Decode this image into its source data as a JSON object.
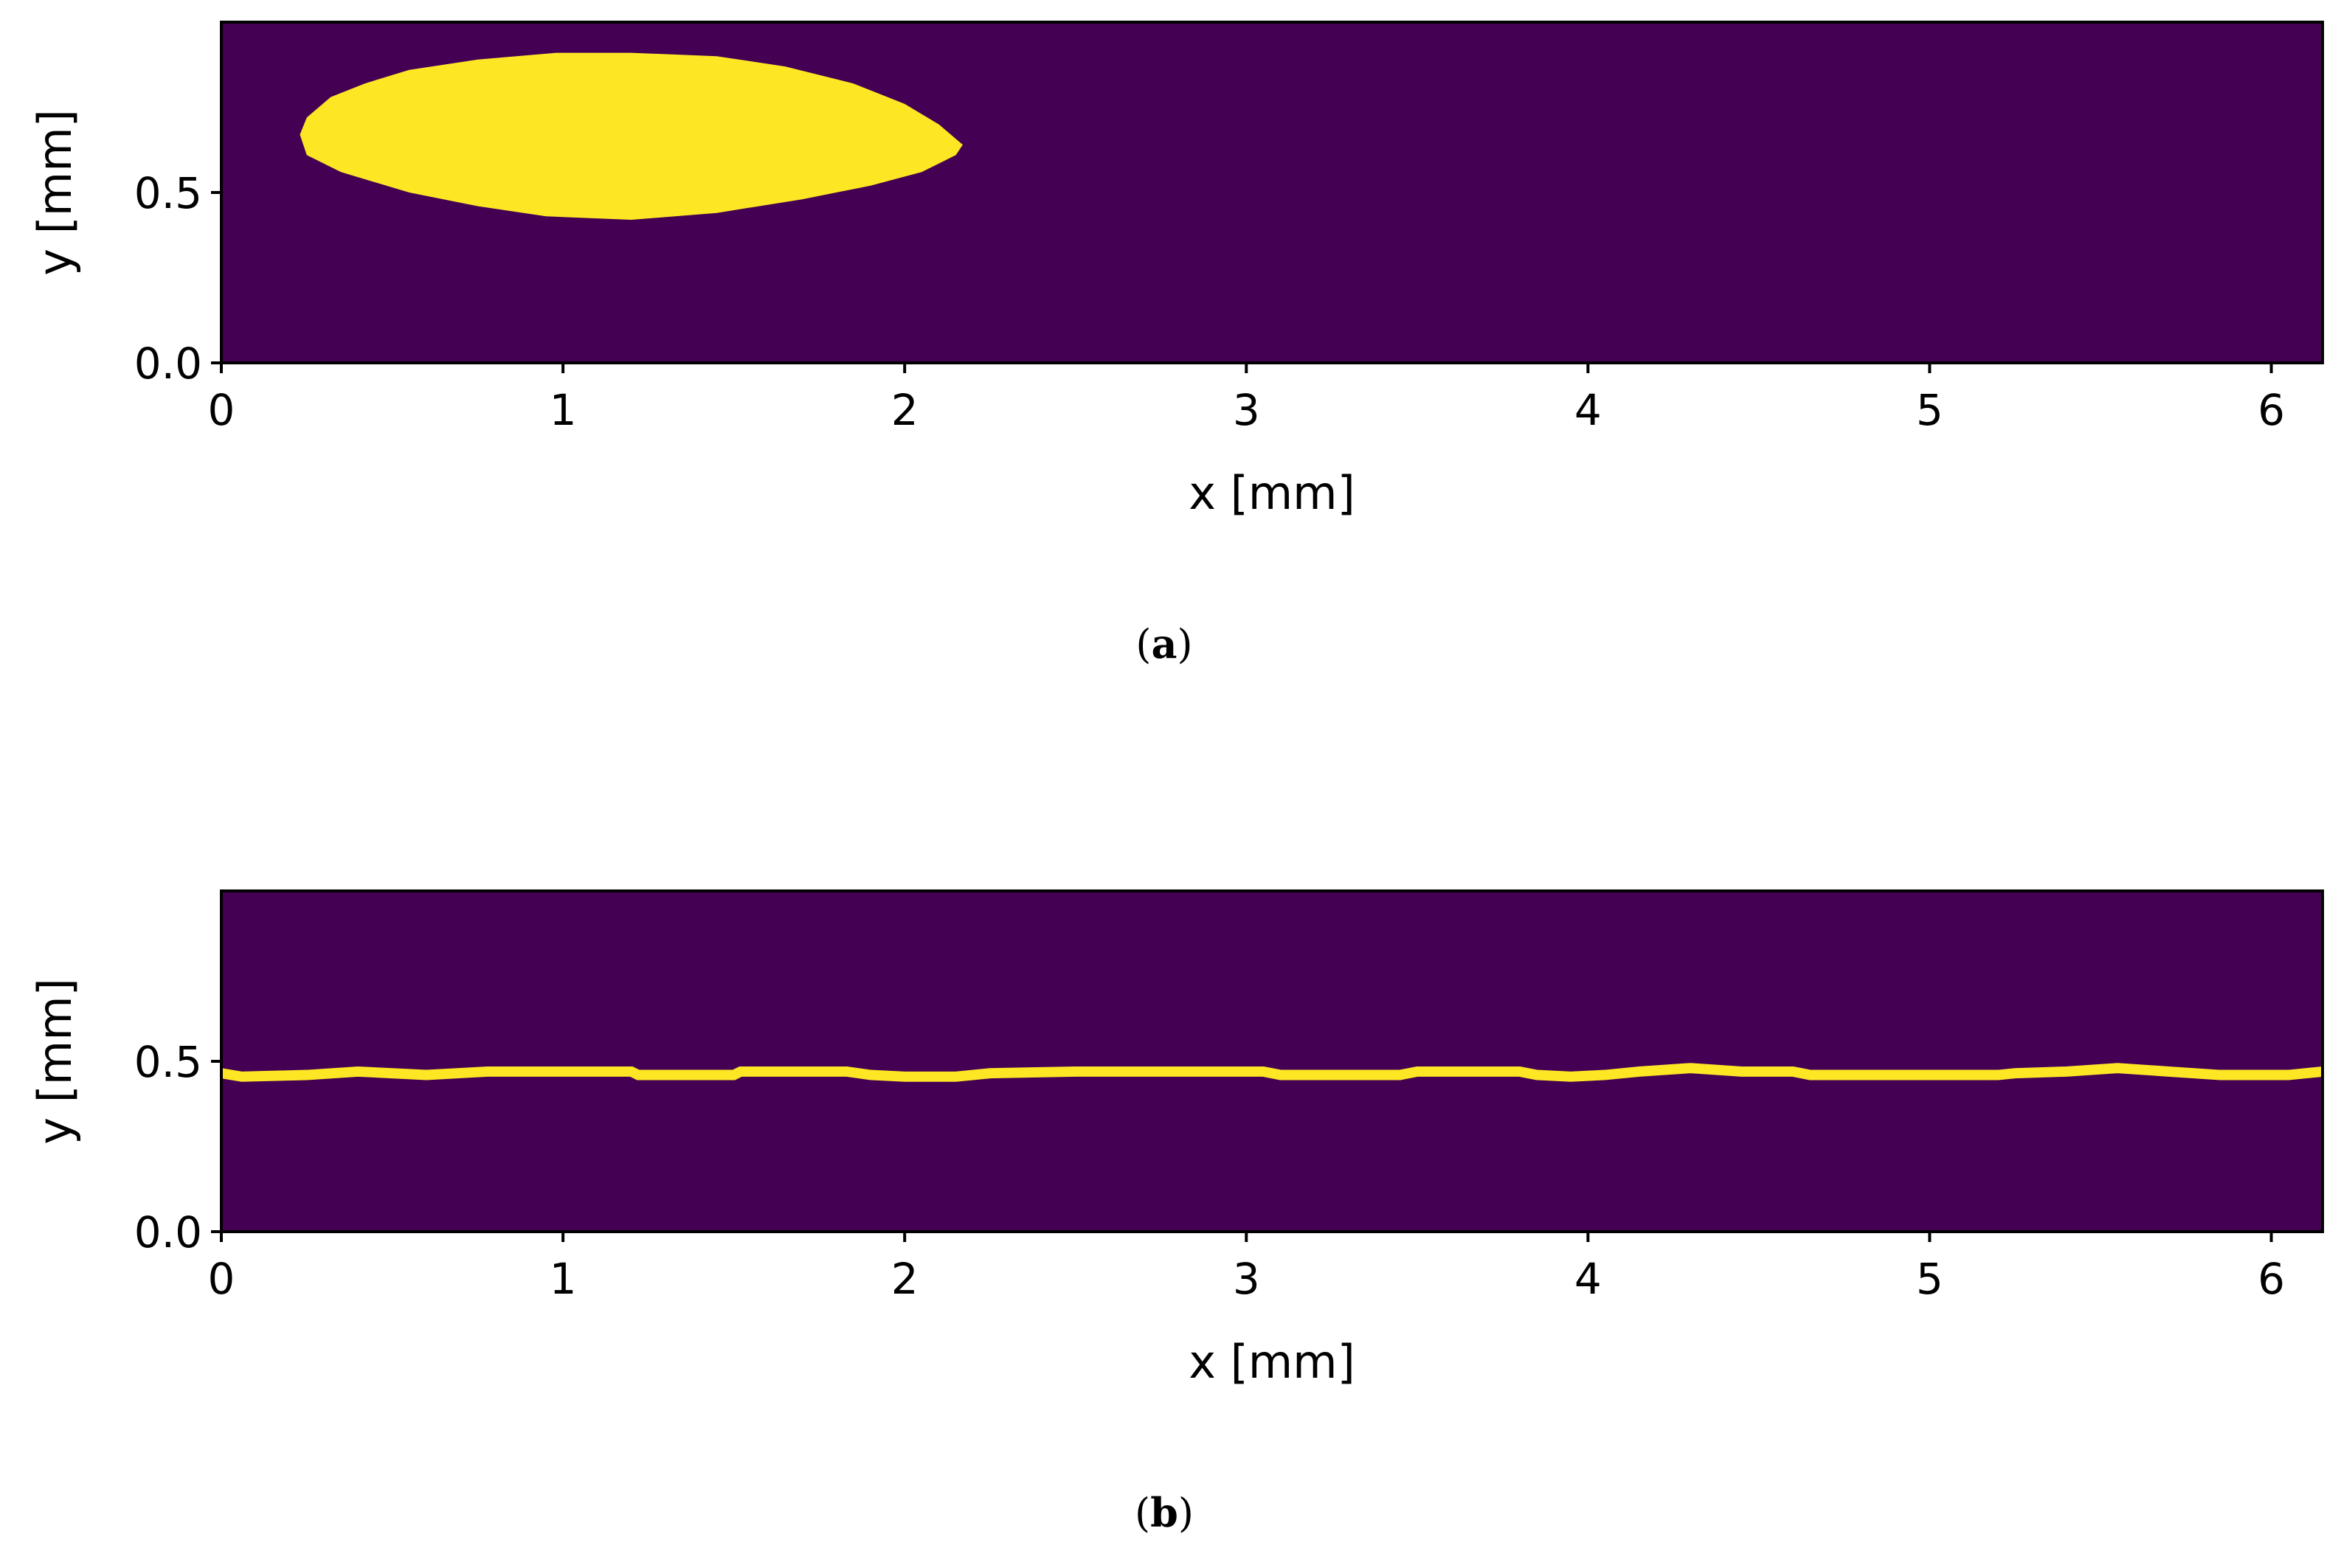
{
  "chart_data": [
    {
      "type": "heatmap",
      "caption": {
        "letter": "a"
      },
      "title": "",
      "xlabel": "x [mm]",
      "ylabel": "y [mm]",
      "xlim": [
        0,
        6.15
      ],
      "ylim": [
        0,
        1.0
      ],
      "xticks": [
        0,
        1,
        2,
        3,
        4,
        5,
        6
      ],
      "xtick_labels": [
        "0",
        "1",
        "2",
        "3",
        "4",
        "5",
        "6"
      ],
      "yticks": [
        0.0,
        0.5
      ],
      "ytick_labels": [
        "0.0",
        "0.5"
      ],
      "grid": false,
      "colors": {
        "background": "#440154",
        "feature": "#fde725"
      },
      "feature": {
        "shape": "ellipse (bubble)",
        "outline": [
          [
            0.23,
            0.67
          ],
          [
            0.25,
            0.72
          ],
          [
            0.32,
            0.78
          ],
          [
            0.42,
            0.82
          ],
          [
            0.55,
            0.86
          ],
          [
            0.75,
            0.89
          ],
          [
            0.98,
            0.91
          ],
          [
            1.2,
            0.91
          ],
          [
            1.45,
            0.9
          ],
          [
            1.65,
            0.87
          ],
          [
            1.85,
            0.82
          ],
          [
            2.0,
            0.76
          ],
          [
            2.1,
            0.7
          ],
          [
            2.17,
            0.64
          ],
          [
            2.15,
            0.61
          ],
          [
            2.05,
            0.56
          ],
          [
            1.9,
            0.52
          ],
          [
            1.7,
            0.48
          ],
          [
            1.45,
            0.44
          ],
          [
            1.2,
            0.42
          ],
          [
            0.95,
            0.43
          ],
          [
            0.75,
            0.46
          ],
          [
            0.55,
            0.5
          ],
          [
            0.35,
            0.56
          ],
          [
            0.25,
            0.61
          ]
        ]
      }
    },
    {
      "type": "heatmap",
      "caption": {
        "letter": "b"
      },
      "title": "",
      "xlabel": "x [mm]",
      "ylabel": "y [mm]",
      "xlim": [
        0,
        6.15
      ],
      "ylim": [
        0,
        1.0
      ],
      "xticks": [
        0,
        1,
        2,
        3,
        4,
        5,
        6
      ],
      "xtick_labels": [
        "0",
        "1",
        "2",
        "3",
        "4",
        "5",
        "6"
      ],
      "yticks": [
        0.0,
        0.5
      ],
      "ytick_labels": [
        "0.0",
        "0.5"
      ],
      "grid": false,
      "colors": {
        "background": "#440154",
        "feature": "#fde725"
      },
      "feature": {
        "shape": "thin film line",
        "thickness_mm": 0.03,
        "centerline": [
          [
            0.0,
            0.465
          ],
          [
            0.06,
            0.455
          ],
          [
            0.25,
            0.46
          ],
          [
            0.4,
            0.47
          ],
          [
            0.6,
            0.46
          ],
          [
            0.78,
            0.47
          ],
          [
            1.2,
            0.47
          ],
          [
            1.22,
            0.46
          ],
          [
            1.5,
            0.46
          ],
          [
            1.52,
            0.47
          ],
          [
            1.83,
            0.47
          ],
          [
            1.9,
            0.46
          ],
          [
            2.0,
            0.455
          ],
          [
            2.15,
            0.455
          ],
          [
            2.25,
            0.465
          ],
          [
            2.5,
            0.47
          ],
          [
            3.05,
            0.47
          ],
          [
            3.1,
            0.46
          ],
          [
            3.45,
            0.46
          ],
          [
            3.5,
            0.47
          ],
          [
            3.8,
            0.47
          ],
          [
            3.85,
            0.46
          ],
          [
            3.95,
            0.455
          ],
          [
            4.05,
            0.46
          ],
          [
            4.15,
            0.47
          ],
          [
            4.3,
            0.48
          ],
          [
            4.45,
            0.47
          ],
          [
            4.6,
            0.47
          ],
          [
            4.65,
            0.46
          ],
          [
            5.2,
            0.46
          ],
          [
            5.25,
            0.465
          ],
          [
            5.4,
            0.47
          ],
          [
            5.55,
            0.48
          ],
          [
            5.7,
            0.47
          ],
          [
            5.85,
            0.46
          ],
          [
            6.05,
            0.46
          ],
          [
            6.15,
            0.47
          ]
        ]
      }
    }
  ]
}
